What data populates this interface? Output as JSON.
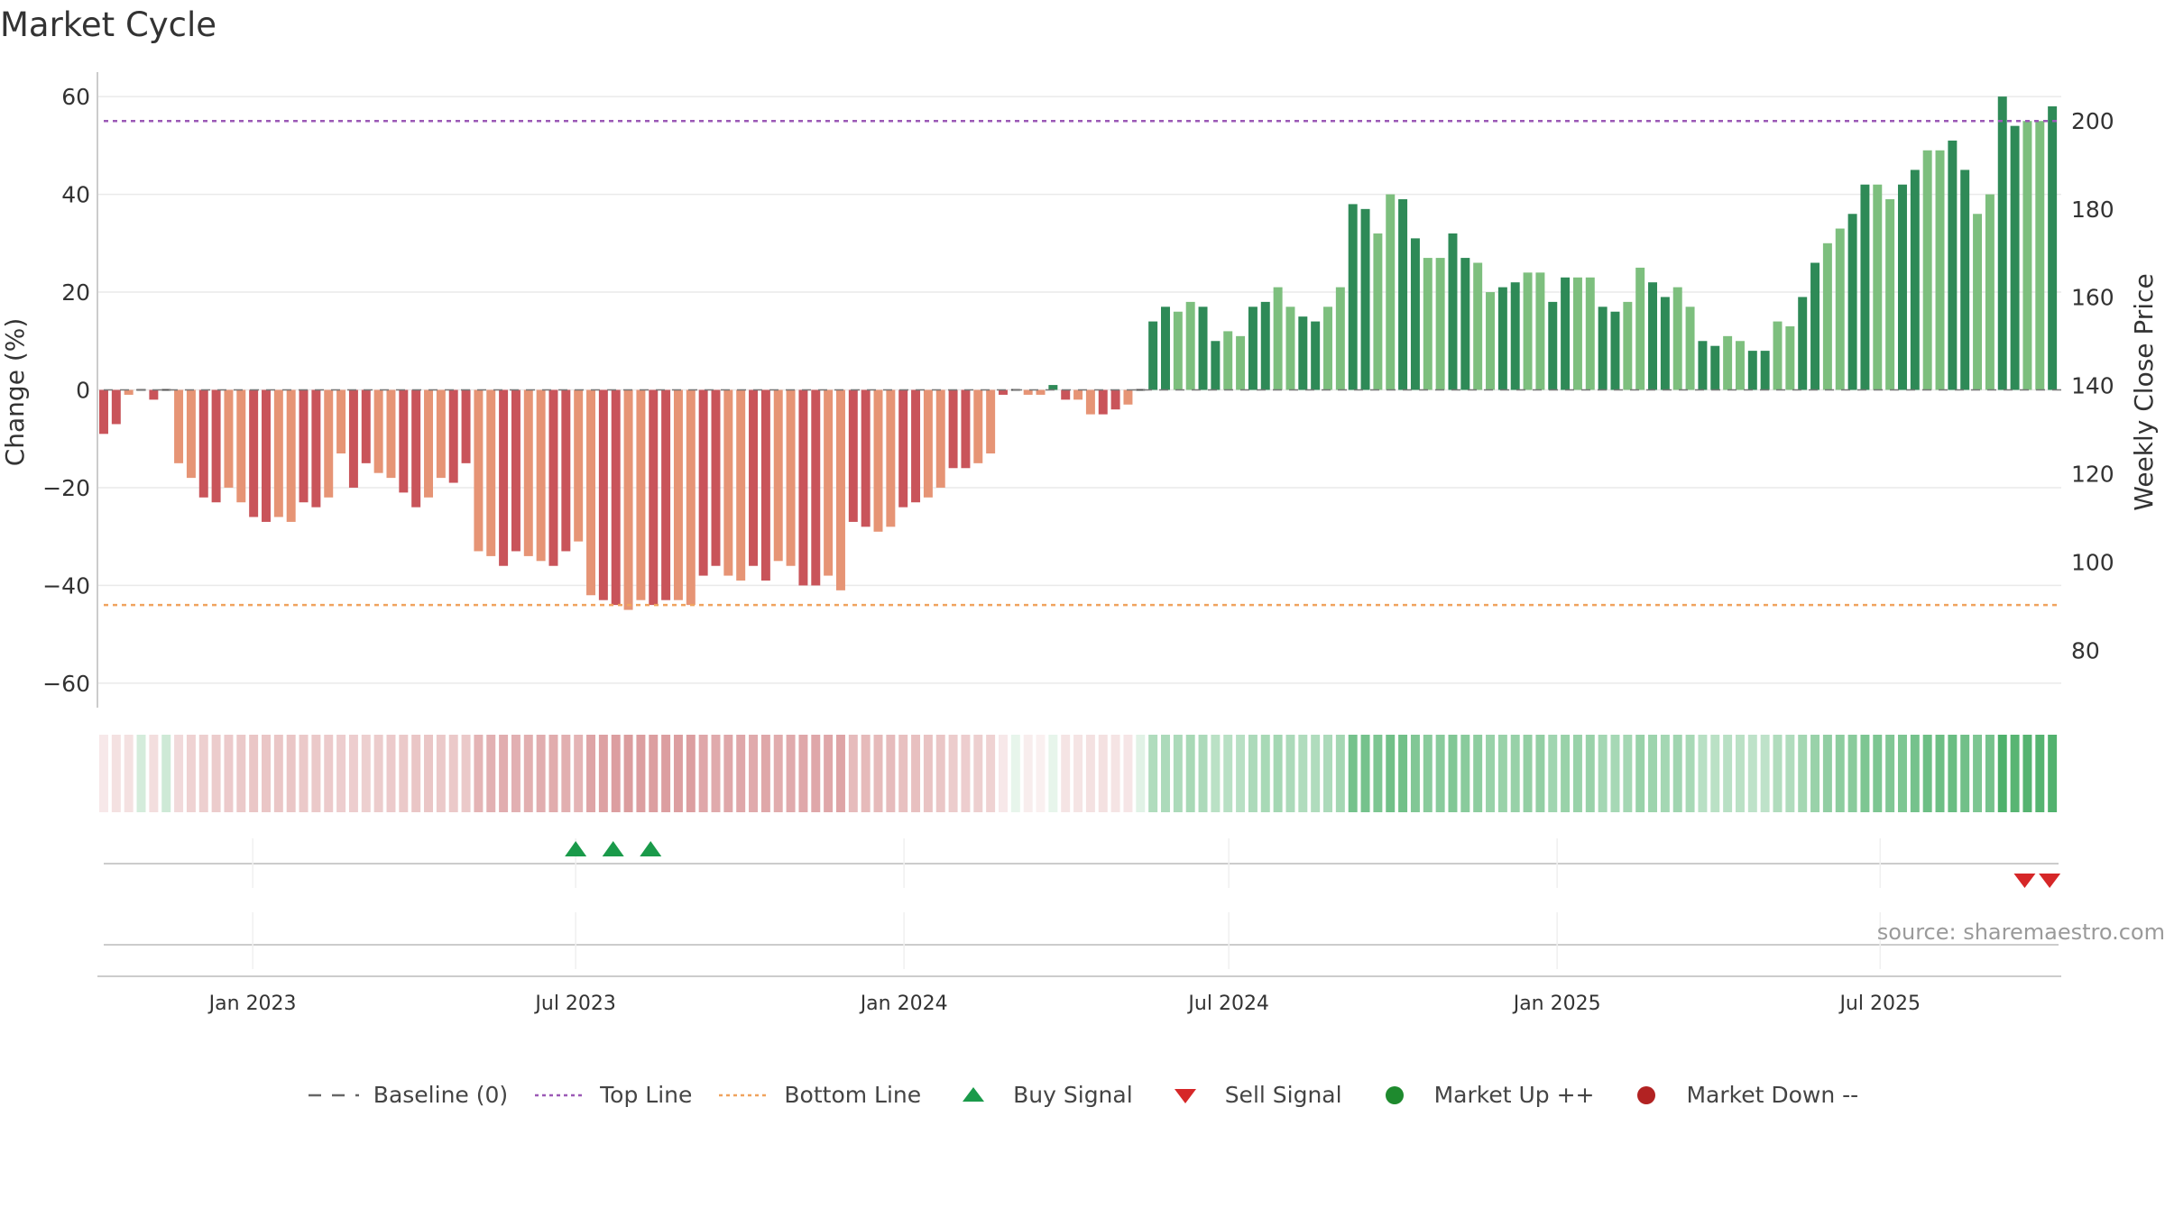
{
  "title": "Market Cycle",
  "source": "source: sharemaestro.com",
  "colors": {
    "neg_dark": "#c9545a",
    "neg_light": "#e69475",
    "pos_dark": "#2e8a57",
    "pos_light": "#7dbf7e",
    "top_line": "#9b59b6",
    "bottom_line": "#f0a35e",
    "buy": "#1a9a4a",
    "sell": "#d62728",
    "market_up": "#1e8a2e",
    "market_down": "#b22222"
  },
  "legend": [
    {
      "id": "baseline",
      "label": "Baseline (0)",
      "marker": "dash-line",
      "color": "#666666"
    },
    {
      "id": "top",
      "label": "Top Line",
      "marker": "dot-line",
      "color": "#9b59b6"
    },
    {
      "id": "bottom",
      "label": "Bottom Line",
      "marker": "dot-line",
      "color": "#f0a35e"
    },
    {
      "id": "buy",
      "label": "Buy Signal",
      "marker": "triangle-up-icon",
      "color": "#1a9a4a"
    },
    {
      "id": "sell",
      "label": "Sell Signal",
      "marker": "triangle-down-icon",
      "color": "#d62728"
    },
    {
      "id": "up",
      "label": "Market Up ++",
      "marker": "circle-icon",
      "color": "#1e8a2e"
    },
    {
      "id": "down",
      "label": "Market Down --",
      "marker": "circle-icon",
      "color": "#b22222"
    }
  ],
  "chart_data": {
    "type": "bar",
    "title": "Market Cycle",
    "y_left_label": "Change (%)",
    "y_right_label": "Weekly Close Price",
    "y_left_ticks": [
      "60",
      "40",
      "20",
      "0",
      "−20",
      "−40",
      "−60"
    ],
    "y_left_tick_values": [
      60,
      40,
      20,
      0,
      -20,
      -40,
      -60
    ],
    "y_left_range": [
      -65,
      65
    ],
    "y_right_ticks": [
      "200",
      "180",
      "160",
      "140",
      "120",
      "100",
      "80"
    ],
    "y_right_tick_values": [
      200,
      180,
      160,
      140,
      120,
      100,
      80
    ],
    "y_right_range": [
      67,
      211
    ],
    "x_ticks": [
      "Jan 2023",
      "Jul 2023",
      "Jan 2024",
      "Jul 2024",
      "Jan 2025",
      "Jul 2025"
    ],
    "x_tick_dates": [
      "2023-01-01",
      "2023-07-01",
      "2024-01-01",
      "2024-07-01",
      "2025-01-01",
      "2025-07-01"
    ],
    "first_bar_date": "2022-10-07",
    "bar_interval_days": 7,
    "top_line": 55,
    "bottom_line": -44,
    "baseline": 0,
    "values": [
      -9,
      -7,
      -1,
      0,
      -2,
      0,
      -15,
      -18,
      -22,
      -23,
      -20,
      -23,
      -26,
      -27,
      -26,
      -27,
      -23,
      -24,
      -22,
      -13,
      -20,
      -15,
      -17,
      -18,
      -21,
      -24,
      -22,
      -18,
      -19,
      -15,
      -33,
      -34,
      -36,
      -33,
      -34,
      -35,
      -36,
      -33,
      -31,
      -42,
      -43,
      -44,
      -45,
      -43,
      -44,
      -43,
      -43,
      -44,
      -38,
      -36,
      -38,
      -39,
      -36,
      -39,
      -35,
      -36,
      -40,
      -40,
      -38,
      -41,
      -27,
      -28,
      -29,
      -28,
      -24,
      -23,
      -22,
      -20,
      -16,
      -16,
      -15,
      -13,
      -1,
      0,
      -1,
      -1,
      1,
      -2,
      -2,
      -5,
      -5,
      -4,
      -3,
      0,
      14,
      17,
      16,
      18,
      17,
      10,
      12,
      11,
      17,
      18,
      21,
      17,
      15,
      14,
      17,
      21,
      38,
      37,
      32,
      40,
      39,
      31,
      27,
      27,
      32,
      27,
      26,
      20,
      21,
      22,
      24,
      24,
      18,
      23,
      23,
      23,
      17,
      16,
      18,
      25,
      22,
      19,
      21,
      17,
      10,
      9,
      11,
      10,
      8,
      8,
      14,
      13,
      19,
      26,
      30,
      33,
      36,
      42,
      42,
      39,
      42,
      45,
      49,
      49,
      51,
      45,
      36,
      40,
      60,
      54,
      55,
      55,
      58
    ],
    "strip_values": [
      0.15,
      0.2,
      0.2,
      0.22,
      0.22,
      0.25,
      0.25,
      0.3,
      0.32,
      0.34,
      0.35,
      0.36,
      0.38,
      0.38,
      0.38,
      0.38,
      0.36,
      0.36,
      0.35,
      0.33,
      0.33,
      0.32,
      0.34,
      0.35,
      0.36,
      0.38,
      0.38,
      0.36,
      0.36,
      0.36,
      0.5,
      0.52,
      0.54,
      0.52,
      0.53,
      0.54,
      0.55,
      0.53,
      0.5,
      0.6,
      0.62,
      0.64,
      0.65,
      0.64,
      0.64,
      0.64,
      0.64,
      0.64,
      0.58,
      0.56,
      0.58,
      0.58,
      0.56,
      0.58,
      0.55,
      0.56,
      0.58,
      0.58,
      0.58,
      0.6,
      0.45,
      0.46,
      0.46,
      0.45,
      0.42,
      0.42,
      0.4,
      0.38,
      0.34,
      0.33,
      0.32,
      0.3,
      0.15,
      0.12,
      0.12,
      0.1,
      0.12,
      0.18,
      0.18,
      0.2,
      0.2,
      0.18,
      0.17,
      0.15,
      0.4,
      0.42,
      0.42,
      0.44,
      0.42,
      0.35,
      0.36,
      0.36,
      0.42,
      0.44,
      0.46,
      0.42,
      0.4,
      0.4,
      0.42,
      0.46,
      0.7,
      0.7,
      0.66,
      0.72,
      0.72,
      0.64,
      0.6,
      0.6,
      0.64,
      0.6,
      0.58,
      0.52,
      0.52,
      0.53,
      0.55,
      0.55,
      0.48,
      0.52,
      0.52,
      0.52,
      0.46,
      0.45,
      0.46,
      0.52,
      0.5,
      0.46,
      0.48,
      0.44,
      0.36,
      0.35,
      0.36,
      0.35,
      0.33,
      0.33,
      0.4,
      0.4,
      0.46,
      0.52,
      0.56,
      0.58,
      0.6,
      0.66,
      0.66,
      0.64,
      0.66,
      0.7,
      0.74,
      0.74,
      0.76,
      0.72,
      0.66,
      0.7,
      0.9,
      0.85,
      0.86,
      0.86,
      0.88
    ],
    "buy_signals": [
      "2023-07-01",
      "2023-07-22",
      "2023-08-12"
    ],
    "sell_signals": [
      "2025-09-20",
      "2025-10-04"
    ]
  }
}
